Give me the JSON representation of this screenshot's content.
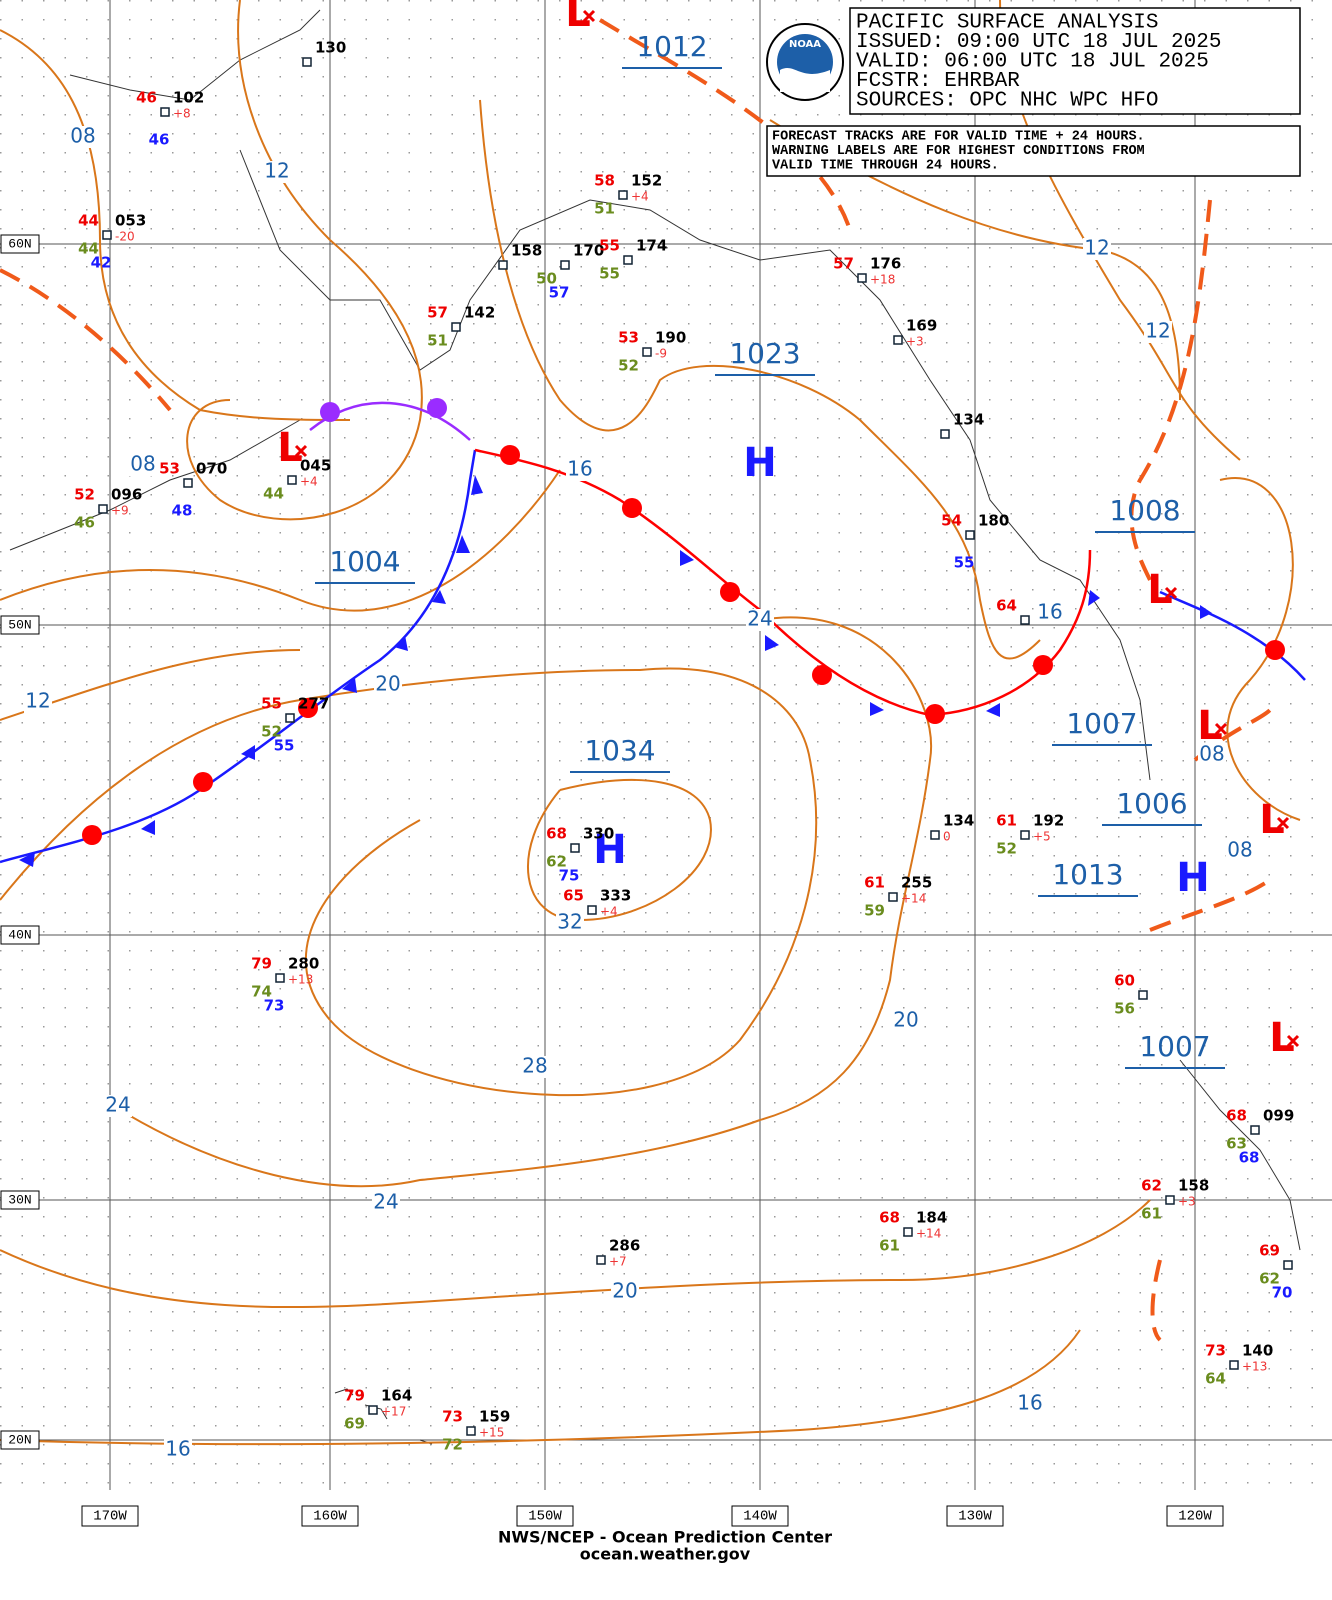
{
  "header": {
    "lines": [
      "PACIFIC SURFACE ANALYSIS",
      "ISSUED: 09:00 UTC 18 JUL 2025",
      "VALID:  06:00 UTC 18 JUL 2025",
      "FCSTR:  EHRBAR",
      "SOURCES: OPC NHC WPC HFO"
    ],
    "note": [
      "FORECAST TRACKS ARE FOR VALID TIME + 24 HOURS.",
      "WARNING LABELS ARE FOR HIGHEST CONDITIONS FROM",
      "VALID TIME THROUGH 24 HOURS."
    ],
    "logo": "NOAA"
  },
  "lat_labels": [
    "60N",
    "50N",
    "40N",
    "30N",
    "20N"
  ],
  "lon_labels": [
    "170W",
    "160W",
    "150W",
    "140W",
    "130W",
    "120W"
  ],
  "pressure_labels": [
    "1012",
    "1023",
    "1004",
    "1034",
    "1008",
    "1007",
    "1006",
    "1013",
    "1007"
  ],
  "high_symbols": [
    "H",
    "H",
    "H"
  ],
  "low_symbols": [
    "L",
    "L",
    "L",
    "L",
    "L",
    "L"
  ],
  "isobar_labels": [
    "08",
    "12",
    "08",
    "16",
    "24",
    "20",
    "12",
    "12",
    "12",
    "16",
    "08",
    "08",
    "32",
    "28",
    "20",
    "24",
    "24",
    "20",
    "16",
    "16"
  ],
  "stations": [
    {
      "p": "130"
    },
    {
      "t": "46",
      "p": "102",
      "tend": "+8",
      "w": "46"
    },
    {
      "t": "44",
      "p": "053",
      "tend": "-20",
      "d": "44",
      "w": "42"
    },
    {
      "p": "158"
    },
    {
      "p": "170",
      "d": "50",
      "w": "57"
    },
    {
      "t": "55",
      "p": "174",
      "d": "55"
    },
    {
      "t": "58",
      "p": "152",
      "tend": "+4",
      "d": "51"
    },
    {
      "t": "57",
      "p": "142",
      "d": "51"
    },
    {
      "t": "53",
      "p": "190",
      "tend": "-9",
      "d": "52"
    },
    {
      "t": "57",
      "p": "176",
      "tend": "+18"
    },
    {
      "p": "169",
      "tend": "+3"
    },
    {
      "p": "134"
    },
    {
      "t": "54",
      "p": "180",
      "w": "55"
    },
    {
      "t": "53",
      "p": "070",
      "w": "48"
    },
    {
      "t": "52",
      "p": "096",
      "tend": "+9",
      "d": "46"
    },
    {
      "p": "045",
      "tend": "+4",
      "d": "44"
    },
    {
      "t": "55",
      "p": "277",
      "d": "52",
      "w": "55"
    },
    {
      "t": "68",
      "p": "330",
      "d": "62",
      "w": "75"
    },
    {
      "t": "65",
      "p": "333",
      "tend": "+4"
    },
    {
      "t": "79",
      "p": "280",
      "tend": "+13",
      "d": "74",
      "w": "73"
    },
    {
      "p": "134",
      "tend": "0"
    },
    {
      "t": "61",
      "p": "192",
      "tend": "+5",
      "d": "52"
    },
    {
      "t": "61",
      "p": "255",
      "tend": "+14",
      "d": "59"
    },
    {
      "t": "68",
      "p": "184",
      "tend": "+14",
      "d": "61"
    },
    {
      "p": "286",
      "tend": "+7"
    },
    {
      "t": "79",
      "p": "164",
      "tend": "+17",
      "d": "69"
    },
    {
      "t": "73",
      "p": "159",
      "tend": "+15",
      "d": "72"
    },
    {
      "t": "62",
      "p": "158",
      "tend": "+3",
      "d": "61"
    },
    {
      "t": "73",
      "p": "140",
      "tend": "+13",
      "d": "64"
    },
    {
      "t": "68",
      "p": "099",
      "d": "63",
      "w": "68"
    },
    {
      "t": "69",
      "d": "62",
      "w": "70"
    },
    {
      "t": "60",
      "d": "56"
    },
    {
      "t": "64"
    }
  ],
  "footer": [
    "NWS/NCEP - Ocean Prediction Center",
    "ocean.weather.gov"
  ]
}
